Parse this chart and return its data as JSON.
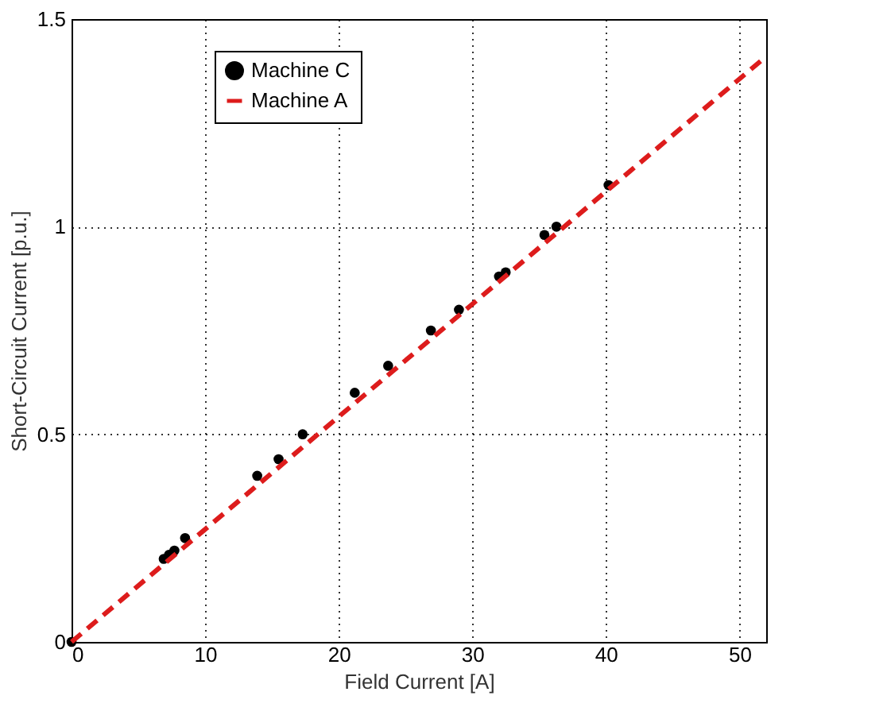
{
  "chart_data": {
    "type": "scatter",
    "xlabel": "Field Current [A]",
    "ylabel": "Short-Circuit Current [p.u.]",
    "xlim": [
      0,
      52
    ],
    "ylim": [
      0,
      1.5
    ],
    "xticks": [
      0,
      10,
      20,
      30,
      40,
      50
    ],
    "yticks": [
      0,
      {
        "value": 0.5,
        "label": "0.5"
      },
      1,
      {
        "value": 1.5,
        "label": "1.5"
      }
    ],
    "grid": true,
    "legend": "top left",
    "series": [
      {
        "name": "Machine C",
        "color": "#000000",
        "marker": "circle",
        "x": [
          0,
          6.9,
          7.3,
          7.7,
          8.5,
          13.9,
          15.5,
          17.3,
          21.2,
          23.7,
          26.9,
          29,
          32,
          32.5,
          35.4,
          36.3,
          40.2
        ],
        "values": [
          0,
          0.2,
          0.21,
          0.22,
          0.25,
          0.4,
          0.44,
          0.5,
          0.6,
          0.665,
          0.75,
          0.8,
          0.88,
          0.89,
          0.98,
          1.0,
          1.1
        ]
      },
      {
        "name": "Machine A",
        "type": "line",
        "color": "#dd1c1c",
        "line_style": "dashed",
        "x": [
          0,
          52
        ],
        "values": [
          0,
          1.41
        ]
      }
    ]
  }
}
